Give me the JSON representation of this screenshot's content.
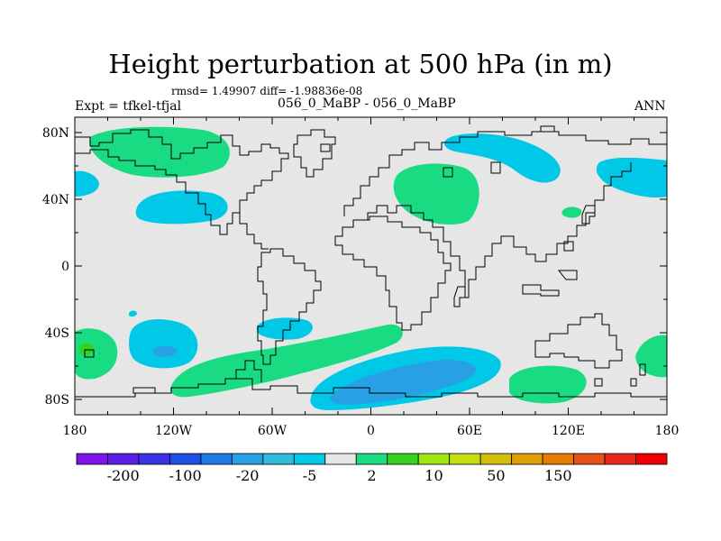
{
  "title": "Height perturbation at 500 hPa (in m)",
  "stats": "rmsd= 1.49907 diff= -1.98836e-08",
  "expt": "Expt = tfkel-tfjal",
  "cases": "056_0_MaBP - 056_0_MaBP",
  "season": "ANN",
  "lat_ticks": [
    {
      "value": 80,
      "label": "80N"
    },
    {
      "value": 40,
      "label": "40N"
    },
    {
      "value": 0,
      "label": "0"
    },
    {
      "value": -40,
      "label": "40S"
    },
    {
      "value": -80,
      "label": "80S"
    }
  ],
  "lon_ticks": [
    {
      "value": -180,
      "label": "180"
    },
    {
      "value": -120,
      "label": "120W"
    },
    {
      "value": -60,
      "label": "60W"
    },
    {
      "value": 0,
      "label": "0"
    },
    {
      "value": 60,
      "label": "60E"
    },
    {
      "value": 120,
      "label": "120E"
    },
    {
      "value": 180,
      "label": "180"
    }
  ],
  "colorbar": {
    "colors": [
      "#7d14ea",
      "#5a1ee6",
      "#3c32e6",
      "#1e50e6",
      "#1e78e6",
      "#28a0e6",
      "#2dbcdc",
      "#00c8e6",
      "#e6e6e6",
      "#19dc82",
      "#32d21e",
      "#a0e614",
      "#c8dc14",
      "#d2be0a",
      "#dca005",
      "#e67d00",
      "#e65014",
      "#e6281e",
      "#f00000"
    ],
    "labels": [
      {
        "after": 1,
        "text": "-200"
      },
      {
        "after": 3,
        "text": "-100"
      },
      {
        "after": 5,
        "text": "-20"
      },
      {
        "after": 7,
        "text": "-5"
      },
      {
        "after": 9,
        "text": "2"
      },
      {
        "after": 11,
        "text": "10"
      },
      {
        "after": 13,
        "text": "50"
      },
      {
        "after": 15,
        "text": "150"
      }
    ]
  },
  "colors": {
    "background_field": "#e6e6e6",
    "positive_anomaly": "#19dc82",
    "positive_strong": "#32d21e",
    "negative_anomaly": "#00c8e6",
    "negative_strong": "#28a0e6",
    "coastline": "#000000"
  }
}
